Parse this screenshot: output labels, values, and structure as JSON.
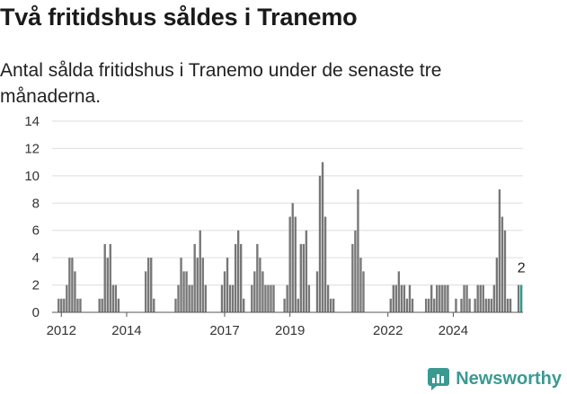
{
  "header": {
    "title": "Två fritidshus såldes i Tranemo",
    "subtitle": "Antal sålda fritidshus i Tranemo under de senaste tre månaderna."
  },
  "brand": {
    "name": "Newsworthy",
    "color": "#3a9a92"
  },
  "colors": {
    "bar": "#777777",
    "highlight": "#2a9d8f",
    "grid": "#dddddd"
  },
  "chart_data": {
    "type": "bar",
    "ylim": [
      0,
      14
    ],
    "y_ticks": [
      0,
      2,
      4,
      6,
      8,
      10,
      12,
      14
    ],
    "x_ticks": [
      "2012",
      "2014",
      "2017",
      "2019",
      "2022",
      "2024"
    ],
    "grid": true,
    "start": "2011-Q4",
    "period": "month",
    "values": [
      0,
      0,
      1,
      1,
      1,
      2,
      4,
      4,
      3,
      1,
      1,
      0,
      0,
      0,
      0,
      0,
      0,
      1,
      1,
      5,
      4,
      5,
      2,
      2,
      1,
      0,
      0,
      0,
      0,
      0,
      0,
      0,
      0,
      0,
      3,
      4,
      4,
      1,
      0,
      0,
      0,
      0,
      0,
      0,
      0,
      1,
      2,
      4,
      3,
      3,
      2,
      2,
      5,
      4,
      6,
      4,
      2,
      0,
      0,
      0,
      0,
      0,
      2,
      3,
      4,
      2,
      2,
      5,
      6,
      5,
      1,
      0,
      0,
      2,
      3,
      5,
      4,
      3,
      2,
      2,
      2,
      2,
      0,
      0,
      0,
      1,
      2,
      7,
      8,
      7,
      1,
      5,
      5,
      6,
      2,
      0,
      0,
      3,
      10,
      11,
      7,
      2,
      1,
      1,
      0,
      0,
      0,
      0,
      0,
      0,
      5,
      6,
      9,
      4,
      3,
      0,
      0,
      0,
      0,
      0,
      0,
      0,
      0,
      0,
      1,
      2,
      2,
      3,
      2,
      2,
      1,
      2,
      1,
      0,
      0,
      0,
      0,
      1,
      1,
      2,
      1,
      2,
      2,
      2,
      2,
      2,
      0,
      0,
      1,
      0,
      1,
      2,
      2,
      1,
      0,
      1,
      2,
      2,
      2,
      1,
      1,
      1,
      2,
      4,
      9,
      7,
      6,
      1,
      1,
      0,
      0,
      2,
      2
    ],
    "highlight_last": 1,
    "highlight_label": "2"
  }
}
